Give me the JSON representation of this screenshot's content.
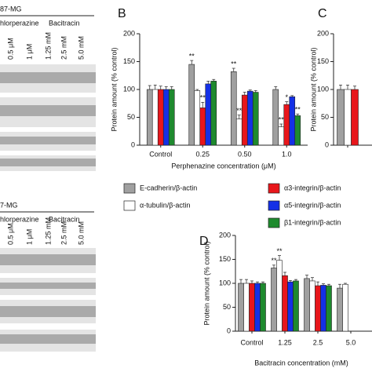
{
  "blots": [
    {
      "title": "87-MG",
      "groups": [
        "hlorperazine",
        "Bacitracin"
      ],
      "lanes": [
        "0.5 μM",
        "1 μM",
        "1.25 mM",
        "2.5 mM",
        "5.0 mM"
      ]
    },
    {
      "title": "7-MG",
      "groups": [
        "hlorperazine",
        "Bacitracin"
      ],
      "lanes": [
        "0.5 μM",
        "1 μM",
        "1.25 mM",
        "2.5 mM",
        "5.0 mM"
      ]
    }
  ],
  "chart_data": [
    {
      "type": "bar",
      "panel": "B",
      "ylabel": "Protein amount (% control)",
      "xlabel": "Perphenazine concentration (μM)",
      "categories": [
        "Control",
        "0.25",
        "0.50",
        "1.0"
      ],
      "ylim": [
        0,
        200
      ],
      "yticks": [
        0,
        50,
        100,
        150,
        200
      ],
      "series": [
        {
          "name": "E-cadherin/β-actin",
          "color": "#a0a0a0",
          "values": [
            100,
            145,
            132,
            100
          ],
          "errors": [
            7,
            7,
            6,
            5
          ]
        },
        {
          "name": "α-tubulin/β-actin",
          "color": "#ffffff",
          "values": [
            100,
            98,
            47,
            33
          ],
          "errors": [
            8,
            2,
            7,
            5
          ]
        },
        {
          "name": "α3-integrin/β-actin",
          "color": "#e8161b",
          "values": [
            100,
            67,
            90,
            73
          ],
          "errors": [
            6,
            10,
            5,
            5
          ]
        },
        {
          "name": "α5-integrin/β-actin",
          "color": "#1430e6",
          "values": [
            100,
            110,
            97,
            87
          ],
          "errors": [
            5,
            5,
            2,
            2
          ]
        },
        {
          "name": "β1-integrin/β-actin",
          "color": "#1e8a2e",
          "values": [
            100,
            115,
            95,
            53
          ],
          "errors": [
            5,
            3,
            3,
            3
          ]
        }
      ],
      "annotations": [
        {
          "text": "**",
          "series": 0,
          "category": 1
        },
        {
          "text": "**",
          "series": 2,
          "category": 1
        },
        {
          "text": "**",
          "series": 0,
          "category": 2
        },
        {
          "text": "**",
          "series": 1,
          "category": 2
        },
        {
          "text": "**",
          "series": 1,
          "category": 3
        },
        {
          "text": "*",
          "series": 2,
          "category": 3
        },
        {
          "text": "**",
          "series": 4,
          "category": 3
        }
      ]
    },
    {
      "type": "bar",
      "panel": "C",
      "ylabel": "Protein amount (% control)",
      "categories": [
        null
      ],
      "ylim": [
        0,
        200
      ],
      "yticks": [
        0,
        50,
        100,
        150,
        200
      ],
      "series": [
        {
          "color": "#a0a0a0",
          "values": [
            100
          ],
          "errors": [
            8
          ]
        },
        {
          "color": "#ffffff",
          "values": [
            100
          ],
          "errors": [
            8
          ]
        },
        {
          "color": "#e8161b",
          "values": [
            100
          ],
          "errors": [
            6
          ]
        }
      ]
    },
    {
      "type": "bar",
      "panel": "D",
      "ylabel": "Protein amount (% control)",
      "xlabel": "Bacitracin concentration (mM)",
      "categories": [
        "Control",
        "1.25",
        "2.5",
        "5.0"
      ],
      "ylim": [
        0,
        200
      ],
      "yticks": [
        0,
        50,
        100,
        150,
        200
      ],
      "series": [
        {
          "color": "#a0a0a0",
          "values": [
            100,
            132,
            110,
            90
          ],
          "errors": [
            8,
            6,
            7,
            8
          ]
        },
        {
          "color": "#ffffff",
          "values": [
            100,
            148,
            105,
            98
          ],
          "errors": [
            8,
            10,
            7,
            2
          ]
        },
        {
          "color": "#e8161b",
          "values": [
            100,
            116,
            95,
            null
          ],
          "errors": [
            5,
            7,
            8,
            null
          ]
        },
        {
          "color": "#1430e6",
          "values": [
            100,
            103,
            96,
            null
          ],
          "errors": [
            3,
            3,
            3,
            null
          ]
        },
        {
          "color": "#1e8a2e",
          "values": [
            100,
            105,
            95,
            null
          ],
          "errors": [
            3,
            3,
            3,
            null
          ]
        }
      ],
      "annotations": [
        {
          "text": "**",
          "series": 0,
          "category": 1
        },
        {
          "text": "**",
          "series": 1,
          "category": 1
        }
      ]
    }
  ]
}
